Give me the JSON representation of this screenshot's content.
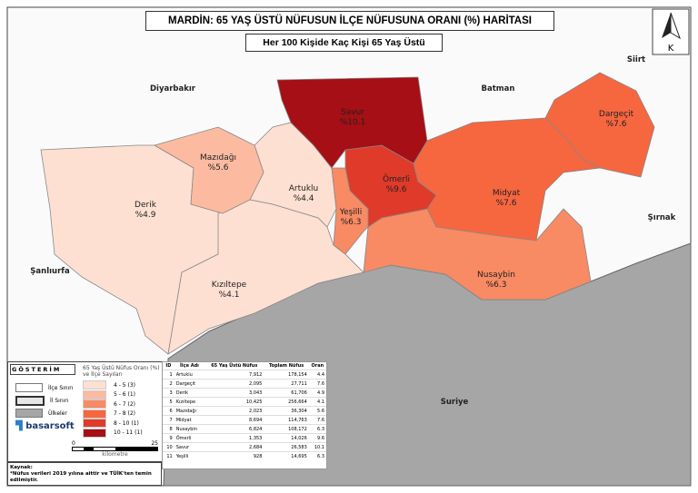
{
  "title": "MARDİN: 65 YAŞ ÜSTÜ NÜFUSUN İLÇE NÜFUSUNA ORANI (%) HARİTASI",
  "subtitle": "Her 100 Kişide Kaç Kişi 65 Yaş Üstü",
  "north": "K",
  "neighbors": {
    "diyarbakir": "Diyarbakır",
    "batman": "Batman",
    "siirt": "Siirt",
    "sirnak": "Şırnak",
    "sanliurfa": "Şanlıurfa",
    "suriye": "Suriye"
  },
  "districts": [
    {
      "name": "Artuklu",
      "value": "%4.4",
      "color": "#fde0d2"
    },
    {
      "name": "Dargeçit",
      "value": "%7.6",
      "color": "#f6663f"
    },
    {
      "name": "Derik",
      "value": "%4.9",
      "color": "#fde0d2"
    },
    {
      "name": "Kızıltepe",
      "value": "%4.1",
      "color": "#fde0d2"
    },
    {
      "name": "Mazıdağı",
      "value": "%5.6",
      "color": "#fcbba1"
    },
    {
      "name": "Midyat",
      "value": "%7.6",
      "color": "#f6663f"
    },
    {
      "name": "Nusaybin",
      "value": "%6.3",
      "color": "#f88a64"
    },
    {
      "name": "Ömerli",
      "value": "%9.6",
      "color": "#e03a2a"
    },
    {
      "name": "Savur",
      "value": "%10.1",
      "color": "#a50f15"
    },
    {
      "name": "Yeşilli",
      "value": "%6.3",
      "color": "#f88a64"
    }
  ],
  "legend": {
    "heading": "GÖSTERİM",
    "scale_title": "65 Yaş Üstü Nüfus Oranı (%) ve İlçe Sayıları",
    "items": [
      {
        "label": "İlçe Sınırı"
      },
      {
        "label": "İl Sınırı"
      },
      {
        "label": "Ülkeler"
      }
    ],
    "classes": [
      {
        "label": "4 -  5  (3)",
        "color": "#fde0d2"
      },
      {
        "label": "5 -  6  (1)",
        "color": "#fcbba1"
      },
      {
        "label": "6 -  7  (2)",
        "color": "#f88a64"
      },
      {
        "label": "7 -  8  (2)",
        "color": "#f6663f"
      },
      {
        "label": "8 - 10  (1)",
        "color": "#e03a2a"
      },
      {
        "label": "10 - 11  (1)",
        "color": "#a50f15"
      }
    ],
    "logo": "basarsoft",
    "scale_start": "0",
    "scale_end": "25",
    "scale_unit": "kilometre"
  },
  "table": {
    "headers": [
      "ID",
      "İlçe Adı",
      "65 Yaş Üstü Nüfus",
      "Toplam Nüfus",
      "Oran"
    ],
    "rows": [
      [
        "1",
        "Artuklu",
        "7,912",
        "178,154",
        "4.4"
      ],
      [
        "2",
        "Dargeçit",
        "2,095",
        "27,711",
        "7.6"
      ],
      [
        "3",
        "Derik",
        "3,043",
        "61,706",
        "4.9"
      ],
      [
        "5",
        "Kızıltepe",
        "10,425",
        "256,664",
        "4.1"
      ],
      [
        "6",
        "Mazıdağı",
        "2,023",
        "36,304",
        "5.6"
      ],
      [
        "7",
        "Midyat",
        "8,694",
        "114,763",
        "7.6"
      ],
      [
        "8",
        "Nusaybin",
        "6,824",
        "108,172",
        "6.3"
      ],
      [
        "9",
        "Ömerli",
        "1,353",
        "14,026",
        "9.6"
      ],
      [
        "10",
        "Savur",
        "2,684",
        "26,583",
        "10.1"
      ],
      [
        "11",
        "Yeşilli",
        "928",
        "14,695",
        "6.3"
      ]
    ]
  },
  "source": {
    "heading": "Kaynak:",
    "text": "*Nüfus verileri 2019 yılına aittir ve TÜİK'ten temin edilmiştir."
  }
}
